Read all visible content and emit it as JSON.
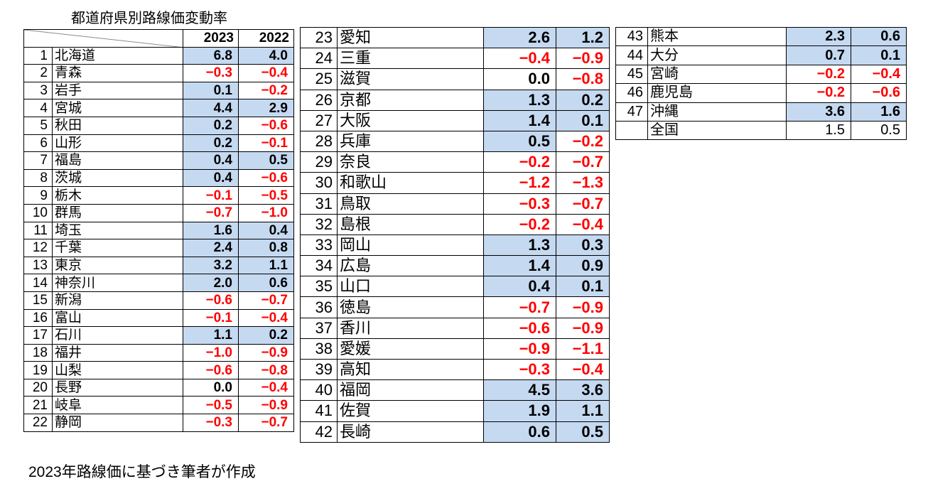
{
  "title": "都道府県別路線価変動率",
  "header": {
    "y2023": "2023",
    "y2022": "2022"
  },
  "footer": "2023年路線価に基づき筆者が作成",
  "colors": {
    "positive_bg": "#c5d9f1",
    "negative_text": "#ff0000"
  },
  "rows": [
    {
      "no": "1",
      "name": "北海道",
      "v2023": "6.8",
      "v2022": "4.0"
    },
    {
      "no": "2",
      "name": "青森",
      "v2023": "−0.3",
      "v2022": "−0.4"
    },
    {
      "no": "3",
      "name": "岩手",
      "v2023": "0.1",
      "v2022": "−0.2"
    },
    {
      "no": "4",
      "name": "宮城",
      "v2023": "4.4",
      "v2022": "2.9"
    },
    {
      "no": "5",
      "name": "秋田",
      "v2023": "0.2",
      "v2022": "−0.6"
    },
    {
      "no": "6",
      "name": "山形",
      "v2023": "0.2",
      "v2022": "−0.1"
    },
    {
      "no": "7",
      "name": "福島",
      "v2023": "0.4",
      "v2022": "0.5"
    },
    {
      "no": "8",
      "name": "茨城",
      "v2023": "0.4",
      "v2022": "−0.6"
    },
    {
      "no": "9",
      "name": "栃木",
      "v2023": "−0.1",
      "v2022": "−0.5"
    },
    {
      "no": "10",
      "name": "群馬",
      "v2023": "−0.7",
      "v2022": "−1.0"
    },
    {
      "no": "11",
      "name": "埼玉",
      "v2023": "1.6",
      "v2022": "0.4"
    },
    {
      "no": "12",
      "name": "千葉",
      "v2023": "2.4",
      "v2022": "0.8"
    },
    {
      "no": "13",
      "name": "東京",
      "v2023": "3.2",
      "v2022": "1.1"
    },
    {
      "no": "14",
      "name": "神奈川",
      "v2023": "2.0",
      "v2022": "0.6"
    },
    {
      "no": "15",
      "name": "新潟",
      "v2023": "−0.6",
      "v2022": "−0.7"
    },
    {
      "no": "16",
      "name": "富山",
      "v2023": "−0.1",
      "v2022": "−0.4"
    },
    {
      "no": "17",
      "name": "石川",
      "v2023": "1.1",
      "v2022": "0.2"
    },
    {
      "no": "18",
      "name": "福井",
      "v2023": "−1.0",
      "v2022": "−0.9"
    },
    {
      "no": "19",
      "name": "山梨",
      "v2023": "−0.6",
      "v2022": "−0.8"
    },
    {
      "no": "20",
      "name": "長野",
      "v2023": "0.0",
      "v2022": "−0.4"
    },
    {
      "no": "21",
      "name": "岐阜",
      "v2023": "−0.5",
      "v2022": "−0.9"
    },
    {
      "no": "22",
      "name": "静岡",
      "v2023": "−0.3",
      "v2022": "−0.7"
    },
    {
      "no": "23",
      "name": "愛知",
      "v2023": "2.6",
      "v2022": "1.2"
    },
    {
      "no": "24",
      "name": "三重",
      "v2023": "−0.4",
      "v2022": "−0.9"
    },
    {
      "no": "25",
      "name": "滋賀",
      "v2023": "0.0",
      "v2022": "−0.8"
    },
    {
      "no": "26",
      "name": "京都",
      "v2023": "1.3",
      "v2022": "0.2"
    },
    {
      "no": "27",
      "name": "大阪",
      "v2023": "1.4",
      "v2022": "0.1"
    },
    {
      "no": "28",
      "name": "兵庫",
      "v2023": "0.5",
      "v2022": "−0.2"
    },
    {
      "no": "29",
      "name": "奈良",
      "v2023": "−0.2",
      "v2022": "−0.7"
    },
    {
      "no": "30",
      "name": "和歌山",
      "v2023": "−1.2",
      "v2022": "−1.3"
    },
    {
      "no": "31",
      "name": "鳥取",
      "v2023": "−0.3",
      "v2022": "−0.7"
    },
    {
      "no": "32",
      "name": "島根",
      "v2023": "−0.2",
      "v2022": "−0.4"
    },
    {
      "no": "33",
      "name": "岡山",
      "v2023": "1.3",
      "v2022": "0.3"
    },
    {
      "no": "34",
      "name": "広島",
      "v2023": "1.4",
      "v2022": "0.9"
    },
    {
      "no": "35",
      "name": "山口",
      "v2023": "0.4",
      "v2022": "0.1"
    },
    {
      "no": "36",
      "name": "徳島",
      "v2023": "−0.7",
      "v2022": "−0.9"
    },
    {
      "no": "37",
      "name": "香川",
      "v2023": "−0.6",
      "v2022": "−0.9"
    },
    {
      "no": "38",
      "name": "愛媛",
      "v2023": "−0.9",
      "v2022": "−1.1"
    },
    {
      "no": "39",
      "name": "高知",
      "v2023": "−0.3",
      "v2022": "−0.4"
    },
    {
      "no": "40",
      "name": "福岡",
      "v2023": "4.5",
      "v2022": "3.6"
    },
    {
      "no": "41",
      "name": "佐賀",
      "v2023": "1.9",
      "v2022": "1.1"
    },
    {
      "no": "42",
      "name": "長崎",
      "v2023": "0.6",
      "v2022": "0.5"
    },
    {
      "no": "43",
      "name": "熊本",
      "v2023": "2.3",
      "v2022": "0.6"
    },
    {
      "no": "44",
      "name": "大分",
      "v2023": "0.7",
      "v2022": "0.1"
    },
    {
      "no": "45",
      "name": "宮崎",
      "v2023": "−0.2",
      "v2022": "−0.4"
    },
    {
      "no": "46",
      "name": "鹿児島",
      "v2023": "−0.2",
      "v2022": "−0.6"
    },
    {
      "no": "47",
      "name": "沖縄",
      "v2023": "3.6",
      "v2022": "1.6"
    }
  ],
  "national": {
    "no": "",
    "name": "全国",
    "v2023": "1.5",
    "v2022": "0.5"
  }
}
